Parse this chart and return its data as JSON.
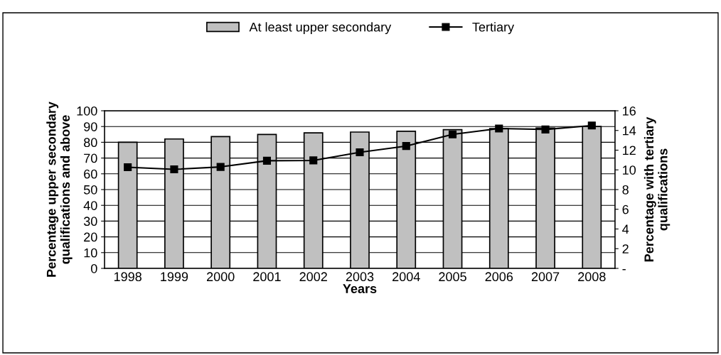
{
  "chart_data": {
    "type": "bar",
    "xlabel": "Years",
    "ylabel": "Percentage upper secondary\nqualifications and above",
    "y2label": "Percentage with tertiary\nqualifications",
    "categories": [
      "1998",
      "1999",
      "2000",
      "2001",
      "2002",
      "2003",
      "2004",
      "2005",
      "2006",
      "2007",
      "2008"
    ],
    "series": [
      {
        "name": "At least upper secondary",
        "color": "#c0c0c0",
        "values": [
          80,
          82.1,
          83.6,
          85,
          86,
          86.5,
          87,
          88,
          88.7,
          89,
          90
        ]
      },
      {
        "name": "Tertiary",
        "color": "#000000",
        "type": "line",
        "axis": "y2",
        "marker": "square",
        "values": [
          10.27,
          10.05,
          10.3,
          10.93,
          10.96,
          11.78,
          12.42,
          13.6,
          14.2,
          14.1,
          14.5
        ]
      }
    ],
    "ylim": [
      0,
      100
    ],
    "yticks": [
      0,
      10,
      20,
      30,
      40,
      50,
      60,
      70,
      80,
      90,
      100
    ],
    "y2lim": [
      0,
      16
    ],
    "y2ticks": [
      {
        "value": 0,
        "label": "-"
      },
      2,
      4,
      6,
      8,
      10,
      12,
      14,
      16
    ],
    "grid": "y",
    "legend": "top"
  }
}
